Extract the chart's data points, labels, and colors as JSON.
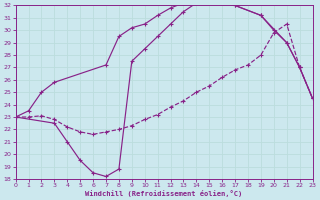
{
  "xlabel": "Windchill (Refroidissement éolien,°C)",
  "bg_color": "#cce8ee",
  "line_color": "#882288",
  "grid_color": "#aadddd",
  "xlim": [
    0,
    23
  ],
  "ylim": [
    18,
    32
  ],
  "xticks": [
    0,
    1,
    2,
    3,
    4,
    5,
    6,
    7,
    8,
    9,
    10,
    11,
    12,
    13,
    14,
    15,
    16,
    17,
    18,
    19,
    20,
    21,
    22,
    23
  ],
  "yticks": [
    18,
    19,
    20,
    21,
    22,
    23,
    24,
    25,
    26,
    27,
    28,
    29,
    30,
    31,
    32
  ],
  "curve1_x": [
    0,
    1,
    2,
    3,
    7,
    8,
    9,
    10,
    11,
    12,
    13,
    14,
    15,
    16,
    17,
    19,
    21,
    22,
    23
  ],
  "curve1_y": [
    23.0,
    23.5,
    25.0,
    25.8,
    27.2,
    29.5,
    30.2,
    30.5,
    31.2,
    31.8,
    32.2,
    32.5,
    32.5,
    32.3,
    32.0,
    31.2,
    29.0,
    27.0,
    24.5
  ],
  "curve2_x": [
    0,
    3,
    4,
    5,
    6,
    7,
    8,
    9,
    10,
    11,
    12,
    13,
    14,
    15,
    16,
    17,
    19,
    20,
    21,
    22,
    23
  ],
  "curve2_y": [
    23.0,
    22.5,
    21.0,
    19.5,
    18.5,
    18.2,
    18.8,
    27.5,
    28.5,
    29.5,
    30.5,
    31.5,
    32.2,
    32.5,
    32.3,
    32.0,
    31.2,
    30.0,
    29.0,
    27.0,
    24.5
  ],
  "curve3_x": [
    0,
    1,
    2,
    3,
    4,
    5,
    6,
    7,
    8,
    9,
    10,
    11,
    12,
    13,
    14,
    15,
    16,
    17,
    18,
    19,
    20,
    21,
    22,
    23
  ],
  "curve3_y": [
    23.0,
    23.0,
    23.1,
    22.8,
    22.2,
    21.8,
    21.6,
    21.8,
    22.0,
    22.3,
    22.8,
    23.2,
    23.8,
    24.3,
    25.0,
    25.5,
    26.2,
    26.8,
    27.2,
    28.0,
    29.8,
    30.5,
    27.0,
    24.5
  ]
}
